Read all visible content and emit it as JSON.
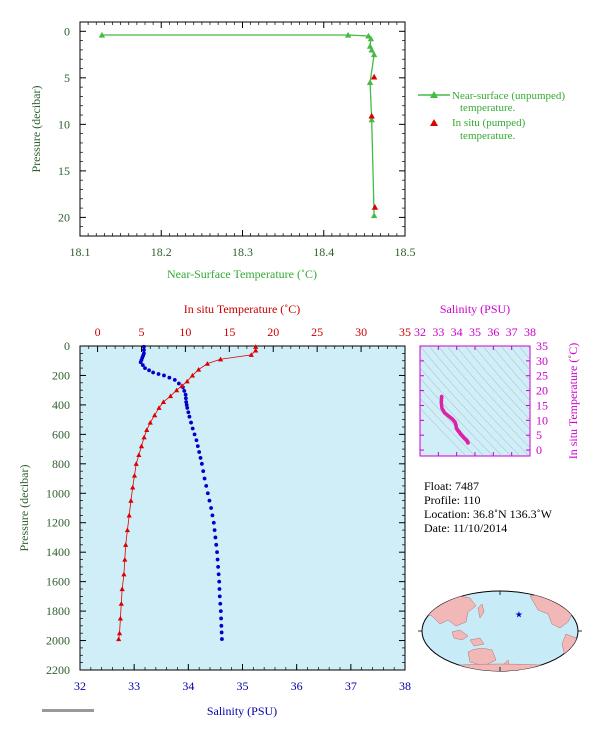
{
  "colors": {
    "green": "#44bb44",
    "red": "#dd0000",
    "blue": "#0000cc",
    "magenta": "#dd22aa",
    "axis_green": "#2f5f2f",
    "panel_bg": "#cfeef8"
  },
  "top_chart": {
    "type": "line",
    "xlabel": "Near-Surface Temperature (˚C)",
    "ylabel": "Pressure (decibar)",
    "xlim": [
      18.1,
      18.5
    ],
    "ylim": [
      22,
      -1
    ],
    "xticks": [
      "18.1",
      "18.2",
      "18.3",
      "18.4",
      "18.5"
    ],
    "yticks": [
      "0",
      "5",
      "10",
      "15",
      "20"
    ],
    "legend": {
      "position": "right",
      "unpumped_line1": "Near-surface (unpumped)",
      "unpumped_line2": "temperature.",
      "pumped_line1": "In situ (pumped)",
      "pumped_line2": "temperature."
    },
    "near_surface": [
      [
        18.127,
        0.4
      ],
      [
        18.43,
        0.4
      ],
      [
        18.455,
        0.5
      ],
      [
        18.458,
        0.8
      ],
      [
        18.457,
        1.6
      ],
      [
        18.459,
        2.0
      ],
      [
        18.462,
        2.5
      ],
      [
        18.457,
        5.5
      ],
      [
        18.459,
        9.5
      ],
      [
        18.462,
        19.8
      ]
    ],
    "in_situ": [
      [
        18.462,
        4.9
      ],
      [
        18.459,
        9.1
      ],
      [
        18.463,
        18.9
      ]
    ]
  },
  "main_chart": {
    "type": "line",
    "ylabel": "Pressure (decibar)",
    "temp_label": "In situ Temperature (˚C)",
    "sal_label": "Salinity (PSU)",
    "temp_lim": [
      -2,
      35
    ],
    "sal_lim": [
      32,
      38
    ],
    "ylim": [
      0,
      2200
    ],
    "temp_ticks": [
      "0",
      "5",
      "10",
      "15",
      "20",
      "25",
      "30",
      "35"
    ],
    "sal_ticks": [
      "32",
      "33",
      "34",
      "35",
      "36",
      "37",
      "38"
    ],
    "yticks": [
      "0",
      "200",
      "400",
      "600",
      "800",
      "1000",
      "1200",
      "1400",
      "1600",
      "1800",
      "2000",
      "2200"
    ],
    "temperature": [
      [
        18.0,
        5
      ],
      [
        18.0,
        30
      ],
      [
        17.5,
        60
      ],
      [
        14.0,
        90
      ],
      [
        12.5,
        120
      ],
      [
        11.5,
        160
      ],
      [
        10.8,
        200
      ],
      [
        10.2,
        240
      ],
      [
        9.6,
        270
      ],
      [
        9.0,
        300
      ],
      [
        8.3,
        340
      ],
      [
        7.5,
        380
      ],
      [
        7.0,
        420
      ],
      [
        6.5,
        470
      ],
      [
        6.0,
        520
      ],
      [
        5.6,
        570
      ],
      [
        5.3,
        620
      ],
      [
        5.0,
        680
      ],
      [
        4.7,
        740
      ],
      [
        4.4,
        800
      ],
      [
        4.2,
        880
      ],
      [
        4.0,
        960
      ],
      [
        3.8,
        1050
      ],
      [
        3.6,
        1150
      ],
      [
        3.4,
        1250
      ],
      [
        3.2,
        1350
      ],
      [
        3.1,
        1450
      ],
      [
        3.0,
        1550
      ],
      [
        2.8,
        1650
      ],
      [
        2.7,
        1750
      ],
      [
        2.6,
        1850
      ],
      [
        2.5,
        1950
      ],
      [
        2.4,
        1990
      ]
    ],
    "salinity": [
      [
        33.18,
        5
      ],
      [
        33.18,
        50
      ],
      [
        33.15,
        80
      ],
      [
        33.12,
        110
      ],
      [
        33.2,
        150
      ],
      [
        33.35,
        180
      ],
      [
        33.55,
        200
      ],
      [
        33.75,
        230
      ],
      [
        33.9,
        280
      ],
      [
        33.95,
        330
      ],
      [
        33.96,
        380
      ],
      [
        33.98,
        420
      ],
      [
        34.02,
        480
      ],
      [
        34.08,
        560
      ],
      [
        34.15,
        640
      ],
      [
        34.2,
        720
      ],
      [
        34.25,
        800
      ],
      [
        34.3,
        900
      ],
      [
        34.36,
        1000
      ],
      [
        34.42,
        1100
      ],
      [
        34.47,
        1200
      ],
      [
        34.5,
        1300
      ],
      [
        34.53,
        1400
      ],
      [
        34.55,
        1500
      ],
      [
        34.57,
        1600
      ],
      [
        34.58,
        1700
      ],
      [
        34.6,
        1800
      ],
      [
        34.61,
        1900
      ],
      [
        34.62,
        1990
      ]
    ]
  },
  "ts_chart": {
    "type": "scatter",
    "xlabel": "Salinity (PSU)",
    "ylabel": "In situ Temperature (˚C)",
    "xlim": [
      32,
      38
    ],
    "ylim": [
      -2,
      35
    ],
    "xticks": [
      "32",
      "33",
      "34",
      "35",
      "36",
      "37",
      "38"
    ],
    "yticks": [
      "0",
      "5",
      "10",
      "15",
      "20",
      "25",
      "30",
      "35"
    ],
    "points": [
      [
        33.18,
        18.0
      ],
      [
        33.16,
        16.0
      ],
      [
        33.2,
        14.0
      ],
      [
        33.35,
        12.5
      ],
      [
        33.55,
        11.5
      ],
      [
        33.75,
        10.5
      ],
      [
        33.9,
        9.5
      ],
      [
        33.96,
        8.5
      ],
      [
        33.98,
        7.5
      ],
      [
        34.02,
        7.0
      ],
      [
        34.08,
        6.5
      ],
      [
        34.15,
        6.0
      ],
      [
        34.2,
        5.5
      ],
      [
        34.25,
        5.2
      ],
      [
        34.3,
        4.8
      ],
      [
        34.36,
        4.4
      ],
      [
        34.42,
        4.0
      ],
      [
        34.47,
        3.7
      ],
      [
        34.53,
        3.4
      ],
      [
        34.57,
        3.0
      ],
      [
        34.6,
        2.7
      ],
      [
        34.62,
        2.4
      ]
    ]
  },
  "info": {
    "float": "Float:  7487",
    "profile": "Profile:  110",
    "location": "Location:  36.8˚N  136.3˚W",
    "date": "Date:  11/10/2014"
  },
  "map": {
    "marker_lon": -136.3,
    "marker_lat": 36.8
  }
}
